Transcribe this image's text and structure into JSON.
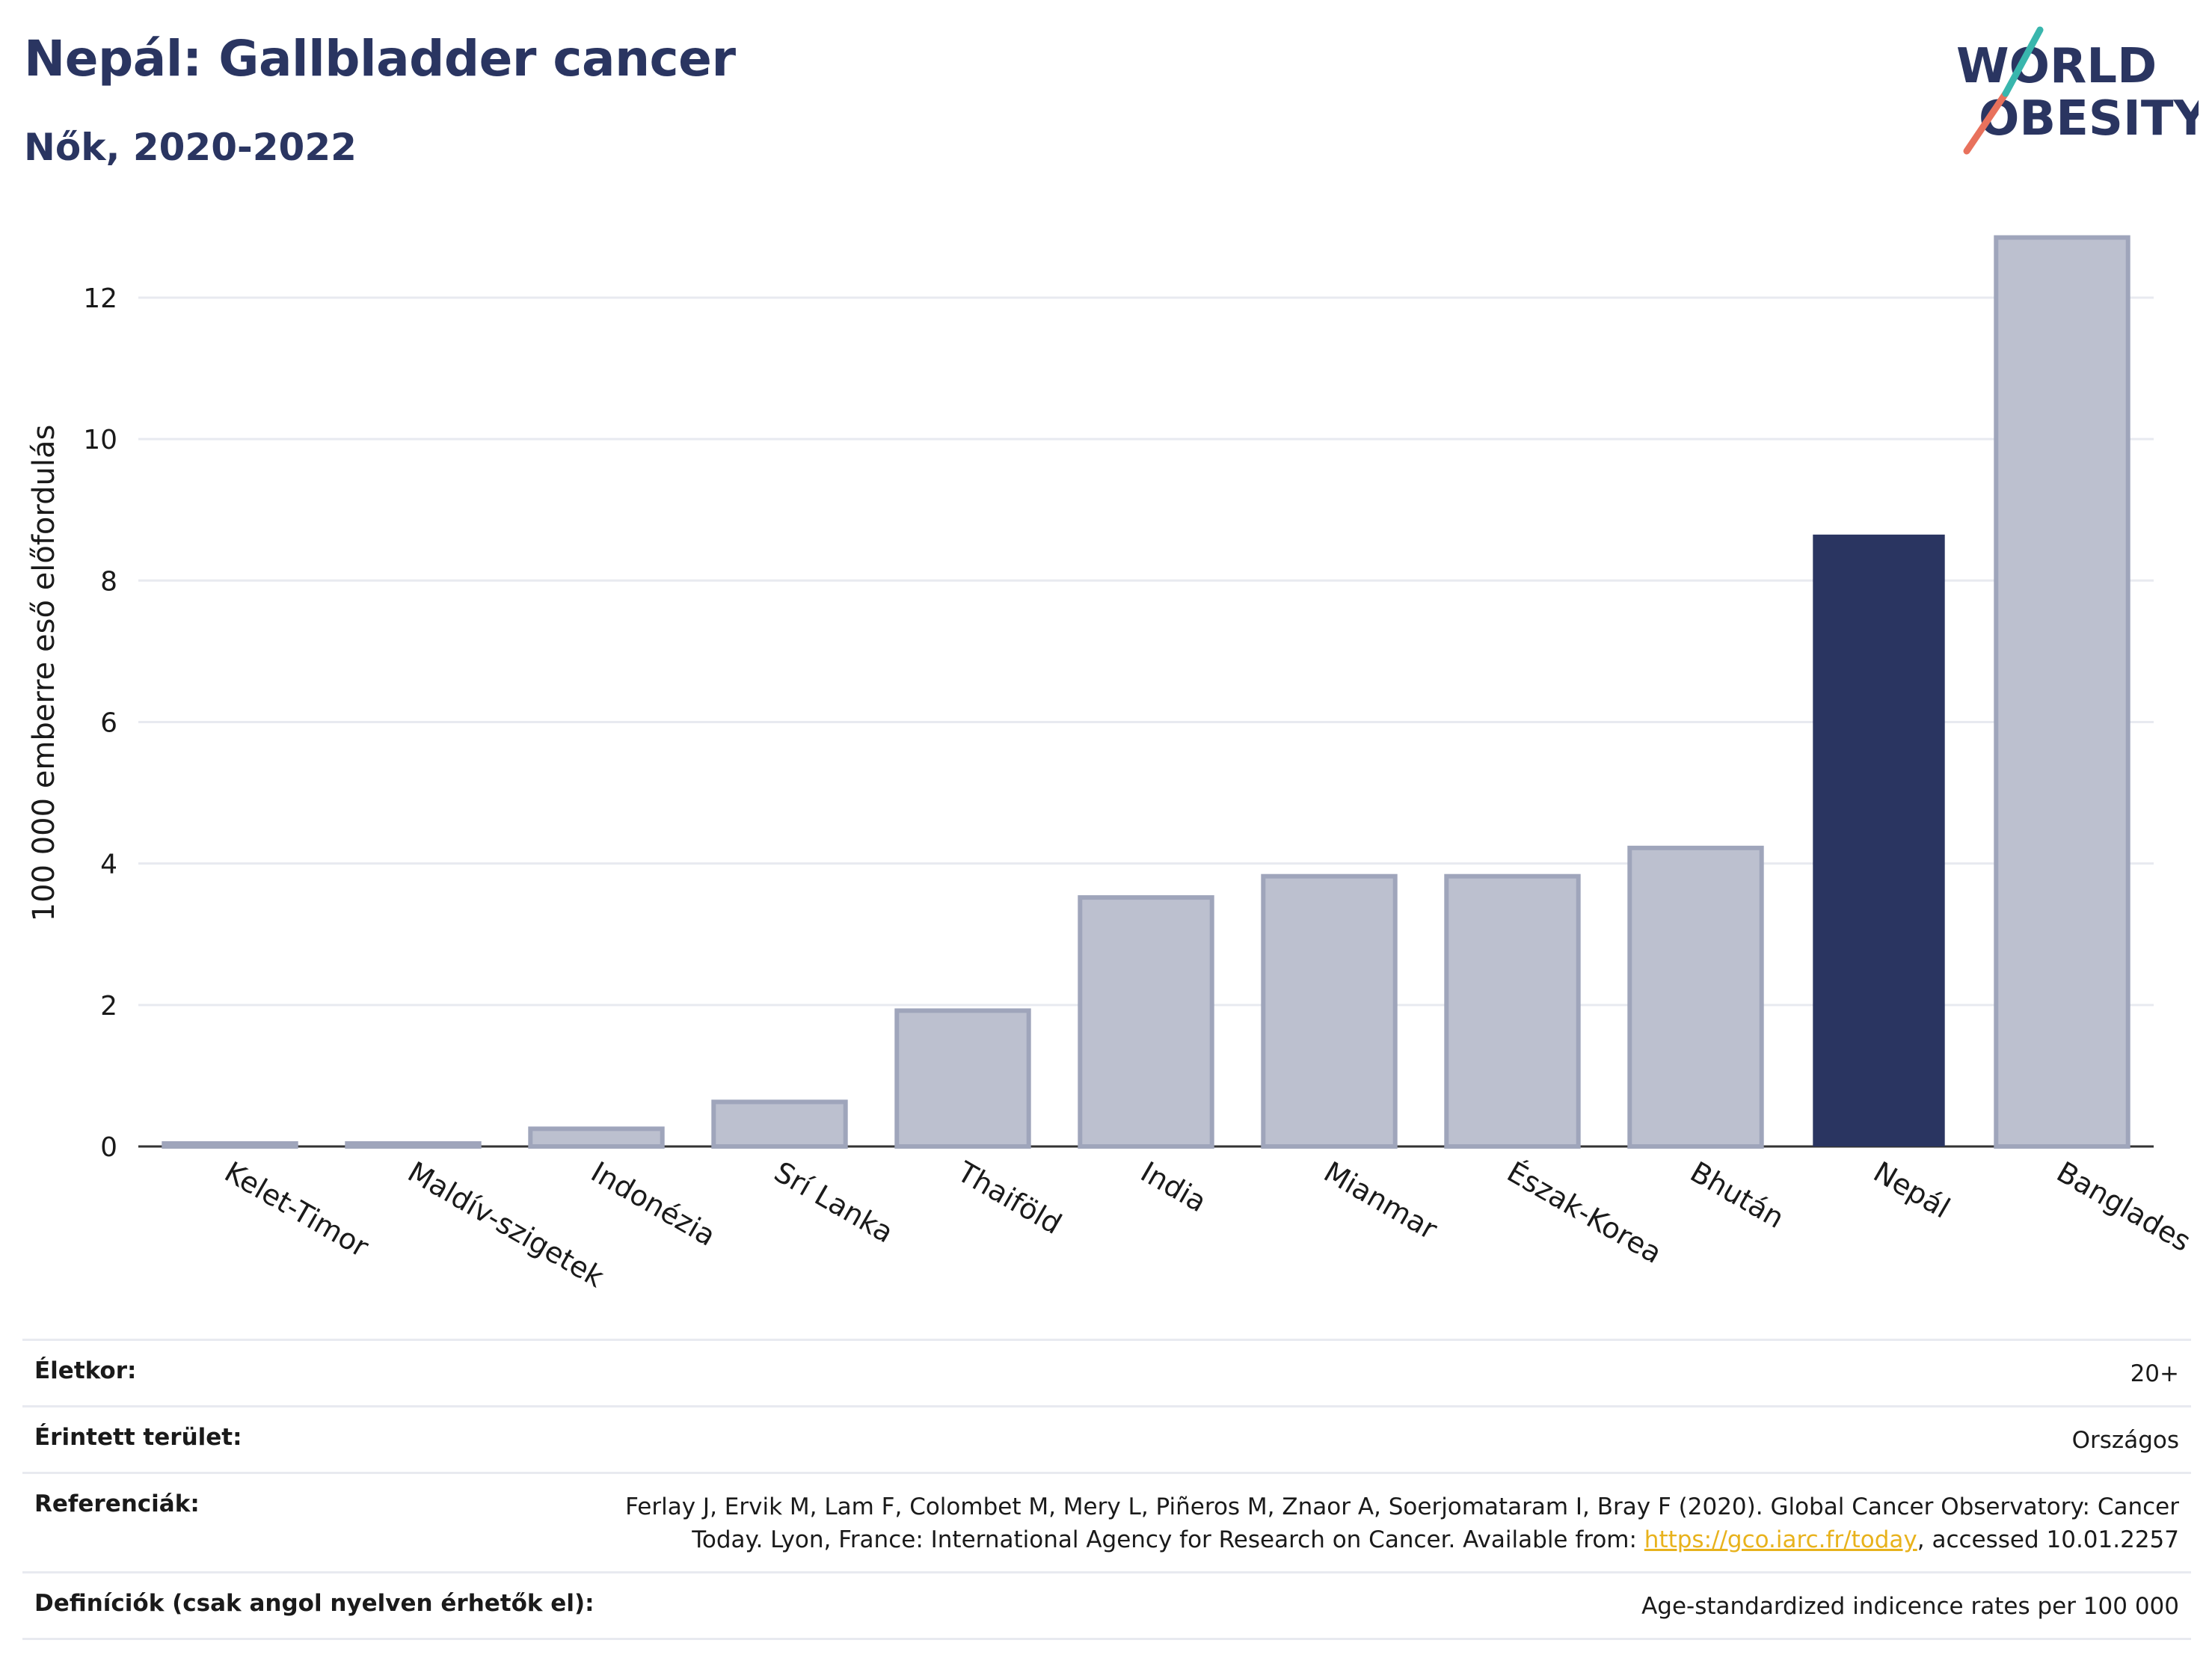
{
  "title": "Nepál: Gallbladder cancer",
  "subtitle": "Nők, 2020-2022",
  "logo": {
    "line1": "WORLD",
    "line2": "OBESITY",
    "colors": [
      "#2a3561",
      "#e8715c",
      "#39b6ad"
    ]
  },
  "colors": {
    "highlight": "#2a3561",
    "bar": "#bcc0cf",
    "bar_stroke": "#9fa5bb",
    "grid": "#e8eaf0",
    "link": "#e8b21c"
  },
  "chart_data": {
    "type": "bar",
    "title": "Nepál: Gallbladder cancer",
    "subtitle": "Nők, 2020-2022",
    "ylabel": "100 000 emberre eső előfordulás",
    "xlabel": "",
    "ylim": [
      0,
      13.3
    ],
    "yticks": [
      0,
      2,
      4,
      6,
      8,
      10,
      12
    ],
    "grid": true,
    "categories": [
      "Kelet-Timor",
      "Maldív-szigetek",
      "Indonézia",
      "Srí Lanka",
      "Thaiföld",
      "India",
      "Mianmar",
      "Észak-Korea",
      "Bhután",
      "Nepál",
      "Banglades"
    ],
    "values": [
      0.03,
      0.03,
      0.25,
      0.63,
      1.92,
      3.52,
      3.82,
      3.82,
      4.22,
      8.65,
      12.85
    ],
    "highlight": "Nepál"
  },
  "footer": {
    "rows": [
      {
        "label": "Életkor:",
        "value": "20+"
      },
      {
        "label": "Érintett terület:",
        "value": "Országos"
      },
      {
        "label": "Referenciák:",
        "value_pre": "Ferlay J, Ervik M, Lam F, Colombet M, Mery L, Piñeros M, Znaor A, Soerjomataram I, Bray F (2020). Global Cancer Observatory: Cancer Today. Lyon, France: International Agency for Research on Cancer. Available from: ",
        "link": "https://gco.iarc.fr/today",
        "value_post": ", accessed 10.01.2257"
      },
      {
        "label": "Definíciók (csak angol nyelven érhetők el):",
        "value": "Age-standardized indicence rates per 100 000"
      }
    ]
  }
}
